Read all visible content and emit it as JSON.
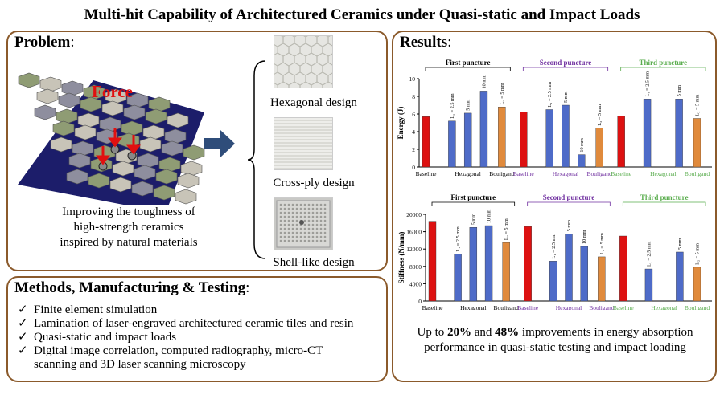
{
  "title": "Multi-hit Capability of Architectured Ceramics under Quasi-static and Impact Loads",
  "problem": {
    "heading": "Problem",
    "colon": ":",
    "force_label": "Force",
    "improve_lines": [
      "Improving the toughness of",
      "high-strength ceramics",
      "inspired by natural materials"
    ],
    "designs": [
      {
        "label": "Hexagonal design"
      },
      {
        "label": "Cross-ply design"
      },
      {
        "label": "Shell-like design"
      }
    ]
  },
  "methods": {
    "heading": "Methods, Manufacturing & Testing",
    "colon": ":",
    "items": [
      "Finite element simulation",
      "Lamination of laser-engraved architectured ceramic tiles and resin",
      "Quasi-static and impact loads",
      "Digital image correlation, computed radiography, micro-CT",
      "scanning and 3D laser scanning microscopy"
    ]
  },
  "results": {
    "heading": "Results",
    "colon": ":",
    "summary_parts": [
      "Up to ",
      "20%",
      " and ",
      "48%",
      " improvements in energy absorption performance in quasi-static testing and impact loading"
    ]
  },
  "colors": {
    "frame": "#8b5a2b",
    "baseline": "#dd1111",
    "hexagonal": "#4e6bc8",
    "bouligand": "#e08a3c",
    "second": "#7030a0",
    "third": "#5aad4e",
    "arrow": "#2f4d7a"
  },
  "chart_data": [
    {
      "type": "bar",
      "ylabel": "Energy (J)",
      "ylim": [
        0,
        10
      ],
      "yticks": [
        0,
        2,
        4,
        6,
        8,
        10
      ],
      "groups": [
        {
          "header": "First puncture",
          "color": "#000000",
          "xlabels": [
            "Baseline",
            "Hexagonal",
            "Bouligand"
          ],
          "bars": [
            {
              "series": "baseline",
              "value": 5.7,
              "label": ""
            },
            {
              "series": "hexagonal",
              "value": 5.2,
              "label": "L₁ = 2.5 mm"
            },
            {
              "series": "hexagonal",
              "value": 6.1,
              "label": "5 mm"
            },
            {
              "series": "hexagonal",
              "value": 8.6,
              "label": "10 mm"
            },
            {
              "series": "bouligand",
              "value": 6.8,
              "label": "L₂ = 5 mm"
            }
          ]
        },
        {
          "header": "Second puncture",
          "color": "#7030a0",
          "xlabels": [
            "Baseline",
            "Hexagonal",
            "Bouligand"
          ],
          "bars": [
            {
              "series": "baseline",
              "value": 6.2,
              "label": ""
            },
            {
              "series": "hexagonal",
              "value": 6.5,
              "label": "L₁ = 2.5 mm"
            },
            {
              "series": "hexagonal",
              "value": 7.0,
              "label": "5 mm"
            },
            {
              "series": "hexagonal",
              "value": 1.4,
              "label": "10 mm"
            },
            {
              "series": "bouligand",
              "value": 4.4,
              "label": "L₂ = 5 mm"
            }
          ]
        },
        {
          "header": "Third puncture",
          "color": "#5aad4e",
          "xlabels": [
            "Baseline",
            "Hexagonal",
            "Bouligand"
          ],
          "bars": [
            {
              "series": "baseline",
              "value": 5.8,
              "label": ""
            },
            {
              "series": "hexagonal",
              "value": 7.7,
              "label": "L₁ = 2.5 mm"
            },
            {
              "series": "hexagonal",
              "value": 7.7,
              "label": "5 mm"
            },
            {
              "series": "bouligand",
              "value": 5.5,
              "label": "L₂ = 5 mm"
            }
          ]
        }
      ]
    },
    {
      "type": "bar",
      "ylabel": "Stiffness (N/mm)",
      "ylim": [
        0,
        20000
      ],
      "yticks": [
        0,
        4000,
        8000,
        12000,
        16000,
        20000
      ],
      "groups": [
        {
          "header": "First puncture",
          "color": "#000000",
          "xlabels": [
            "Baseline",
            "Hexagonal",
            "Bouligand"
          ],
          "bars": [
            {
              "series": "baseline",
              "value": 18400,
              "label": ""
            },
            {
              "series": "hexagonal",
              "value": 10800,
              "label": "L₁ = 2.5 mm"
            },
            {
              "series": "hexagonal",
              "value": 17000,
              "label": "5 mm"
            },
            {
              "series": "hexagonal",
              "value": 17400,
              "label": "10 mm"
            },
            {
              "series": "bouligand",
              "value": 13500,
              "label": "L₂ = 5 mm"
            }
          ]
        },
        {
          "header": "Second puncture",
          "color": "#7030a0",
          "xlabels": [
            "Baseline",
            "Hexagonal",
            "Bouligand"
          ],
          "bars": [
            {
              "series": "baseline",
              "value": 17200,
              "label": ""
            },
            {
              "series": "hexagonal",
              "value": 9200,
              "label": "L₁ = 2.5 mm"
            },
            {
              "series": "hexagonal",
              "value": 15500,
              "label": "5 mm"
            },
            {
              "series": "hexagonal",
              "value": 12600,
              "label": "10 mm"
            },
            {
              "series": "bouligand",
              "value": 10200,
              "label": "L₂ = 5 mm"
            }
          ]
        },
        {
          "header": "Third puncture",
          "color": "#5aad4e",
          "xlabels": [
            "Baseline",
            "Hexagonal",
            "Bouligand"
          ],
          "bars": [
            {
              "series": "baseline",
              "value": 15000,
              "label": ""
            },
            {
              "series": "hexagonal",
              "value": 7400,
              "label": "L₁ = 2.5 mm"
            },
            {
              "series": "hexagonal",
              "value": 11300,
              "label": "5 mm"
            },
            {
              "series": "bouligand",
              "value": 7800,
              "label": "L₂ = 5 mm"
            }
          ]
        }
      ]
    }
  ]
}
